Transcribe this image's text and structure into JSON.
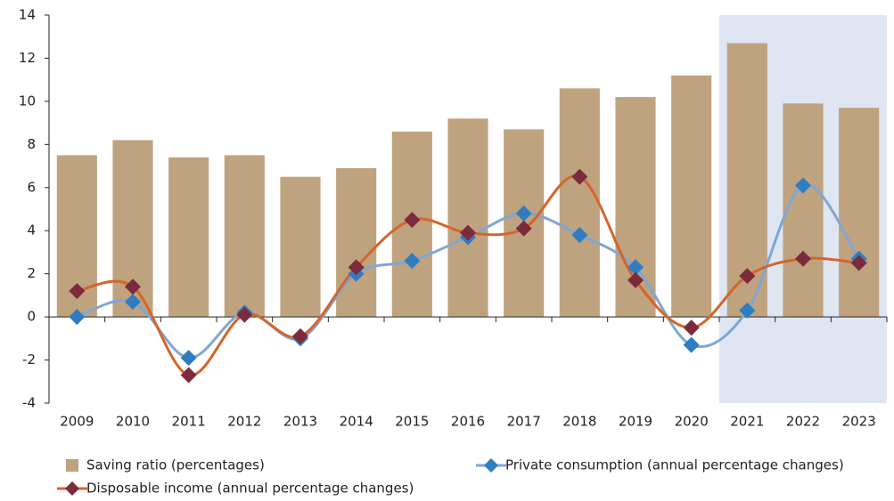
{
  "chart_data": {
    "type": "bar_line",
    "categories": [
      "2009",
      "2010",
      "2011",
      "2012",
      "2013",
      "2014",
      "2015",
      "2016",
      "2017",
      "2018",
      "2019",
      "2020",
      "2021",
      "2022",
      "2023"
    ],
    "series": [
      {
        "name": "Saving ratio (percentages)",
        "type": "bar",
        "color": "#bfa27e",
        "values": [
          7.5,
          8.2,
          7.4,
          7.5,
          6.5,
          6.9,
          8.6,
          9.2,
          8.7,
          10.6,
          10.2,
          11.2,
          12.7,
          9.9,
          9.7
        ]
      },
      {
        "name": "Private consumption (annual percentage changes)",
        "type": "line",
        "color": "#7fa6d4",
        "marker_color": "#2f7dc1",
        "values": [
          0.0,
          0.7,
          -1.9,
          0.2,
          -1.0,
          2.0,
          2.6,
          3.7,
          4.8,
          3.8,
          2.3,
          -1.3,
          0.3,
          6.1,
          2.7
        ]
      },
      {
        "name": "Disposable income (annual percentage changes)",
        "type": "line",
        "color": "#d4652b",
        "marker_color": "#7c2b3c",
        "values": [
          1.2,
          1.4,
          -2.7,
          0.1,
          -0.9,
          2.3,
          4.5,
          3.9,
          4.1,
          6.5,
          1.7,
          -0.5,
          1.9,
          2.7,
          2.5
        ]
      }
    ],
    "ylim": [
      -4,
      14
    ],
    "yticks": [
      -4,
      -2,
      0,
      2,
      4,
      6,
      8,
      10,
      12,
      14
    ],
    "shade_from": "2021",
    "shade_color": "#dfe6f2"
  }
}
